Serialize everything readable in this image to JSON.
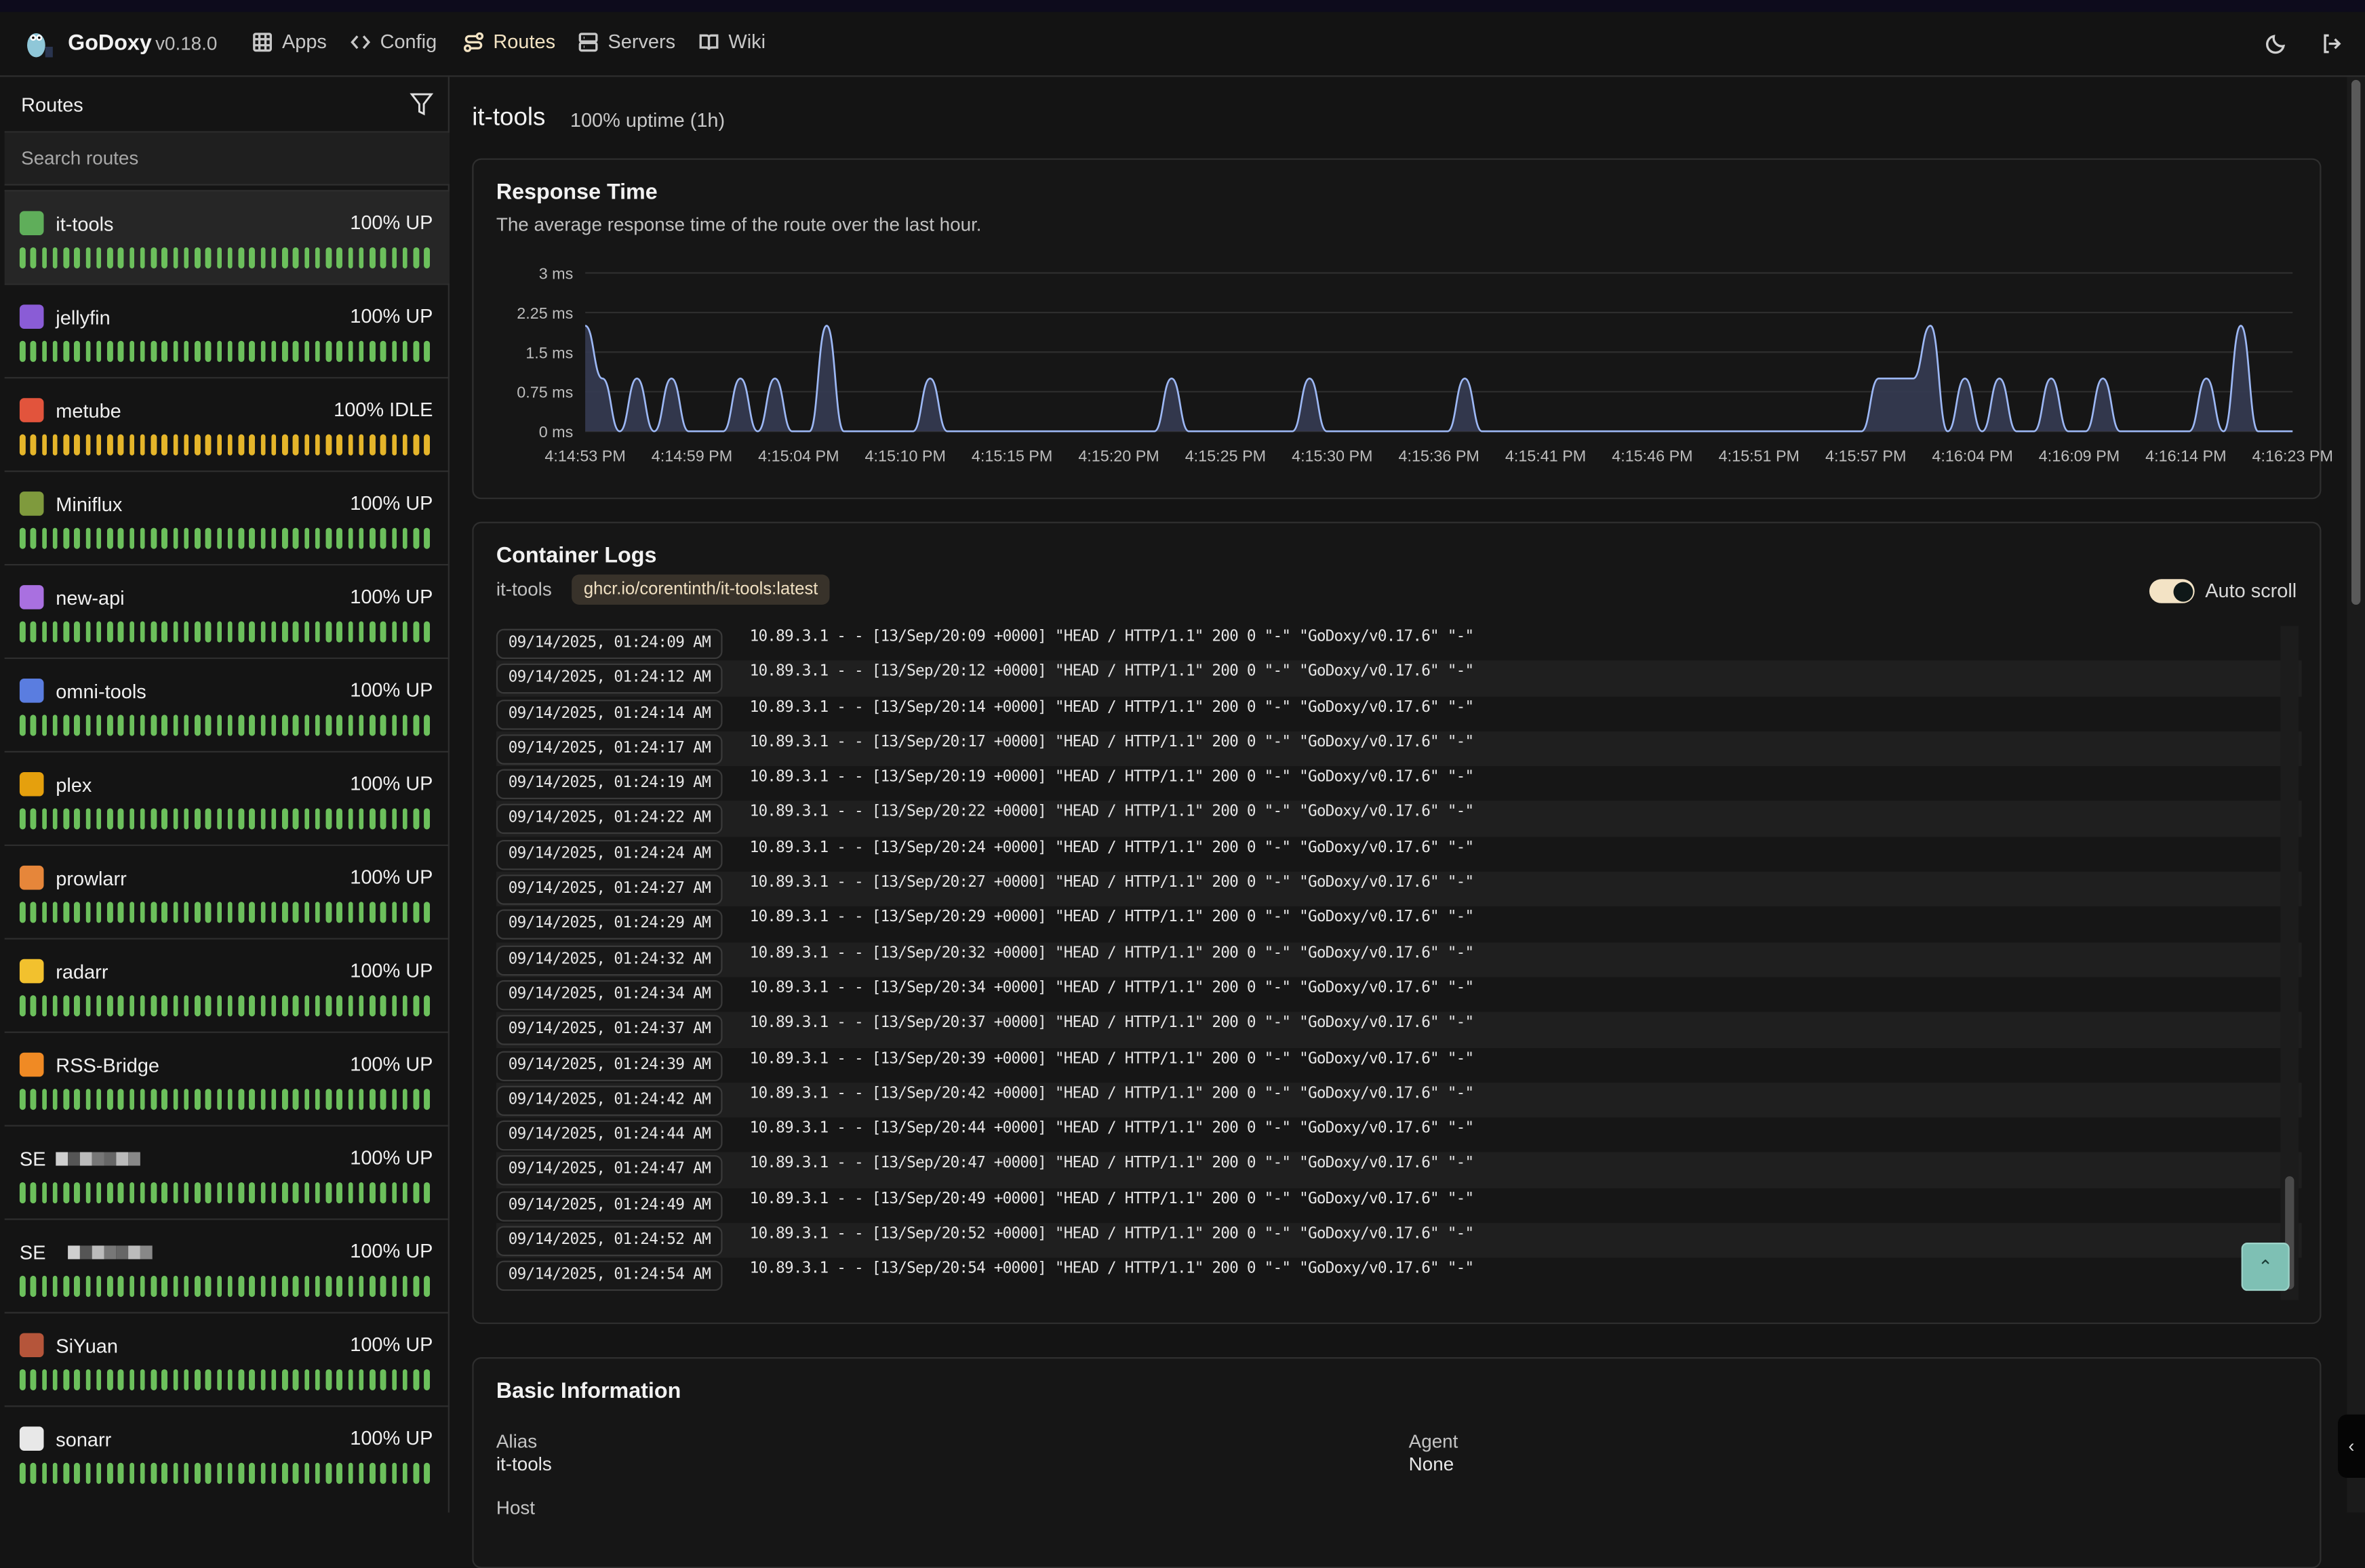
{
  "header": {
    "brand": "GoDoxy",
    "version": "v0.18.0",
    "nav": [
      {
        "label": "Apps",
        "icon": "grid-icon",
        "active": false
      },
      {
        "label": "Config",
        "icon": "code-icon",
        "active": false
      },
      {
        "label": "Routes",
        "icon": "route-icon",
        "active": true
      },
      {
        "label": "Servers",
        "icon": "server-icon",
        "active": false
      },
      {
        "label": "Wiki",
        "icon": "book-icon",
        "active": false
      }
    ],
    "accent": "#f3e3c3"
  },
  "sidebar": {
    "title": "Routes",
    "search_placeholder": "Search routes",
    "routes": [
      {
        "name": "it-tools",
        "status": "100% UP",
        "state": "up",
        "icon_color": "#5fae5a",
        "active": true
      },
      {
        "name": "jellyfin",
        "status": "100% UP",
        "state": "up",
        "icon_color": "#8a5cd6"
      },
      {
        "name": "metube",
        "status": "100% IDLE",
        "state": "idle",
        "icon_color": "#e2543c"
      },
      {
        "name": "Miniflux",
        "status": "100% UP",
        "state": "up",
        "icon_color": "#7f9a3d"
      },
      {
        "name": "new-api",
        "status": "100% UP",
        "state": "up",
        "icon_color": "#a970e0"
      },
      {
        "name": "omni-tools",
        "status": "100% UP",
        "state": "up",
        "icon_color": "#5a7de0"
      },
      {
        "name": "plex",
        "status": "100% UP",
        "state": "up",
        "icon_color": "#e5a00d"
      },
      {
        "name": "prowlarr",
        "status": "100% UP",
        "state": "up",
        "icon_color": "#e6863a"
      },
      {
        "name": "radarr",
        "status": "100% UP",
        "state": "up",
        "icon_color": "#f2c12e"
      },
      {
        "name": "RSS-Bridge",
        "status": "100% UP",
        "state": "up",
        "icon_color": "#f08a24"
      },
      {
        "name": "SE",
        "status": "100% UP",
        "state": "up",
        "icon_color": "#222222",
        "redacted": true
      },
      {
        "name": "SE",
        "status": "100% UP",
        "state": "up",
        "icon_color": "#222222",
        "redacted": true
      },
      {
        "name": "SiYuan",
        "status": "100% UP",
        "state": "up",
        "icon_color": "#b5553a"
      },
      {
        "name": "sonarr",
        "status": "100% UP",
        "state": "up",
        "icon_color": "#e8e8e8"
      }
    ],
    "status_colors": {
      "up": "#6cc05c",
      "idle": "#e5b52a"
    }
  },
  "main": {
    "title": "it-tools",
    "uptime": "100% uptime (1h)",
    "response_card": {
      "title": "Response Time",
      "description": "The average response time of the route over the last hour."
    },
    "logs_card": {
      "title": "Container Logs",
      "container": "it-tools",
      "image": "ghcr.io/corentinth/it-tools:latest",
      "auto_scroll_label": "Auto scroll",
      "auto_scroll": true,
      "rows": [
        {
          "ts": "09/14/2025, 01:24:09 AM",
          "msg": "10.89.3.1 - - [13/Sep/20:09 +0000] \"HEAD / HTTP/1.1\" 200 0 \"-\" \"GoDoxy/v0.17.6\" \"-\""
        },
        {
          "ts": "09/14/2025, 01:24:12 AM",
          "msg": "10.89.3.1 - - [13/Sep/20:12 +0000] \"HEAD / HTTP/1.1\" 200 0 \"-\" \"GoDoxy/v0.17.6\" \"-\""
        },
        {
          "ts": "09/14/2025, 01:24:14 AM",
          "msg": "10.89.3.1 - - [13/Sep/20:14 +0000] \"HEAD / HTTP/1.1\" 200 0 \"-\" \"GoDoxy/v0.17.6\" \"-\""
        },
        {
          "ts": "09/14/2025, 01:24:17 AM",
          "msg": "10.89.3.1 - - [13/Sep/20:17 +0000] \"HEAD / HTTP/1.1\" 200 0 \"-\" \"GoDoxy/v0.17.6\" \"-\""
        },
        {
          "ts": "09/14/2025, 01:24:19 AM",
          "msg": "10.89.3.1 - - [13/Sep/20:19 +0000] \"HEAD / HTTP/1.1\" 200 0 \"-\" \"GoDoxy/v0.17.6\" \"-\""
        },
        {
          "ts": "09/14/2025, 01:24:22 AM",
          "msg": "10.89.3.1 - - [13/Sep/20:22 +0000] \"HEAD / HTTP/1.1\" 200 0 \"-\" \"GoDoxy/v0.17.6\" \"-\""
        },
        {
          "ts": "09/14/2025, 01:24:24 AM",
          "msg": "10.89.3.1 - - [13/Sep/20:24 +0000] \"HEAD / HTTP/1.1\" 200 0 \"-\" \"GoDoxy/v0.17.6\" \"-\""
        },
        {
          "ts": "09/14/2025, 01:24:27 AM",
          "msg": "10.89.3.1 - - [13/Sep/20:27 +0000] \"HEAD / HTTP/1.1\" 200 0 \"-\" \"GoDoxy/v0.17.6\" \"-\""
        },
        {
          "ts": "09/14/2025, 01:24:29 AM",
          "msg": "10.89.3.1 - - [13/Sep/20:29 +0000] \"HEAD / HTTP/1.1\" 200 0 \"-\" \"GoDoxy/v0.17.6\" \"-\""
        },
        {
          "ts": "09/14/2025, 01:24:32 AM",
          "msg": "10.89.3.1 - - [13/Sep/20:32 +0000] \"HEAD / HTTP/1.1\" 200 0 \"-\" \"GoDoxy/v0.17.6\" \"-\""
        },
        {
          "ts": "09/14/2025, 01:24:34 AM",
          "msg": "10.89.3.1 - - [13/Sep/20:34 +0000] \"HEAD / HTTP/1.1\" 200 0 \"-\" \"GoDoxy/v0.17.6\" \"-\""
        },
        {
          "ts": "09/14/2025, 01:24:37 AM",
          "msg": "10.89.3.1 - - [13/Sep/20:37 +0000] \"HEAD / HTTP/1.1\" 200 0 \"-\" \"GoDoxy/v0.17.6\" \"-\""
        },
        {
          "ts": "09/14/2025, 01:24:39 AM",
          "msg": "10.89.3.1 - - [13/Sep/20:39 +0000] \"HEAD / HTTP/1.1\" 200 0 \"-\" \"GoDoxy/v0.17.6\" \"-\""
        },
        {
          "ts": "09/14/2025, 01:24:42 AM",
          "msg": "10.89.3.1 - - [13/Sep/20:42 +0000] \"HEAD / HTTP/1.1\" 200 0 \"-\" \"GoDoxy/v0.17.6\" \"-\""
        },
        {
          "ts": "09/14/2025, 01:24:44 AM",
          "msg": "10.89.3.1 - - [13/Sep/20:44 +0000] \"HEAD / HTTP/1.1\" 200 0 \"-\" \"GoDoxy/v0.17.6\" \"-\""
        },
        {
          "ts": "09/14/2025, 01:24:47 AM",
          "msg": "10.89.3.1 - - [13/Sep/20:47 +0000] \"HEAD / HTTP/1.1\" 200 0 \"-\" \"GoDoxy/v0.17.6\" \"-\""
        },
        {
          "ts": "09/14/2025, 01:24:49 AM",
          "msg": "10.89.3.1 - - [13/Sep/20:49 +0000] \"HEAD / HTTP/1.1\" 200 0 \"-\" \"GoDoxy/v0.17.6\" \"-\""
        },
        {
          "ts": "09/14/2025, 01:24:52 AM",
          "msg": "10.89.3.1 - - [13/Sep/20:52 +0000] \"HEAD / HTTP/1.1\" 200 0 \"-\" \"GoDoxy/v0.17.6\" \"-\""
        },
        {
          "ts": "09/14/2025, 01:24:54 AM",
          "msg": "10.89.3.1 - - [13/Sep/20:54 +0000] \"HEAD / HTTP/1.1\" 200 0 \"-\" \"GoDoxy/v0.17.6\" \"-\""
        }
      ]
    },
    "info_card": {
      "title": "Basic Information",
      "fields": [
        {
          "label": "Alias",
          "value": "it-tools"
        },
        {
          "label": "Agent",
          "value": "None"
        },
        {
          "label": "Host",
          "value": ""
        }
      ]
    }
  },
  "chart_data": {
    "type": "area",
    "title": "Response Time",
    "ylim": [
      0,
      3
    ],
    "yticks": [
      "0 ms",
      "0.75 ms",
      "1.5 ms",
      "2.25 ms",
      "3 ms"
    ],
    "ytick_values": [
      0,
      0.75,
      1.5,
      2.25,
      3
    ],
    "xticks": [
      "4:14:53 PM",
      "4:14:59 PM",
      "4:15:04 PM",
      "4:15:10 PM",
      "4:15:15 PM",
      "4:15:20 PM",
      "4:15:25 PM",
      "4:15:30 PM",
      "4:15:36 PM",
      "4:15:41 PM",
      "4:15:46 PM",
      "4:15:51 PM",
      "4:15:57 PM",
      "4:16:04 PM",
      "4:16:09 PM",
      "4:16:14 PM",
      "4:16:23 PM"
    ],
    "grid": true,
    "line_color": "#9db8f5",
    "fill_color": "#353b52",
    "values": [
      2,
      1,
      0,
      1,
      0,
      1,
      0,
      0,
      0,
      1,
      0,
      1,
      0,
      0,
      2,
      0,
      0,
      0,
      0,
      0,
      1,
      0,
      0,
      0,
      0,
      0,
      0,
      0,
      0,
      0,
      0,
      0,
      0,
      0,
      1,
      0,
      0,
      0,
      0,
      0,
      0,
      0,
      1,
      0,
      0,
      0,
      0,
      0,
      0,
      0,
      0,
      1,
      0,
      0,
      0,
      0,
      0,
      0,
      0,
      0,
      0,
      0,
      0,
      0,
      0,
      0,
      0,
      0,
      0,
      0,
      0,
      0,
      0,
      0,
      0,
      1,
      1,
      1,
      2,
      0,
      1,
      0,
      1,
      0,
      0,
      1,
      0,
      0,
      1,
      0,
      0,
      0,
      0,
      0,
      1,
      0,
      2,
      0,
      0,
      0
    ]
  }
}
